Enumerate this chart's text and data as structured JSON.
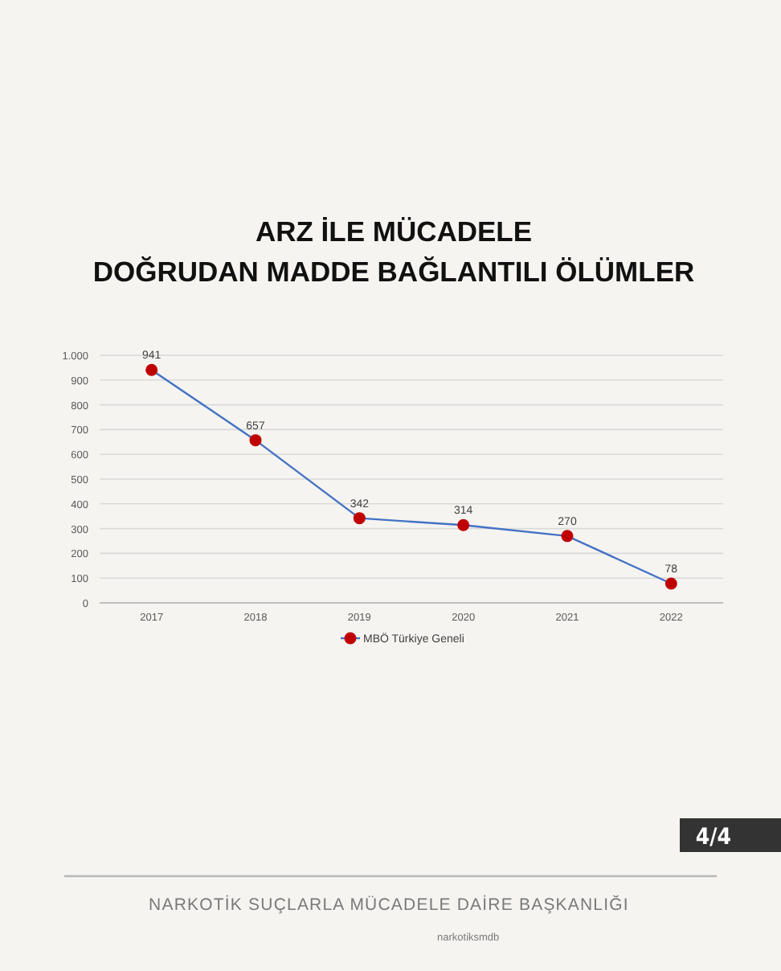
{
  "chart_data": {
    "type": "line",
    "title": "ARZ İLE MÜCADELE\nDOĞRUDAN MADDE BAĞLANTILI ÖLÜMLER",
    "categories": [
      "2017",
      "2018",
      "2019",
      "2020",
      "2021",
      "2022"
    ],
    "series": [
      {
        "name": "MBÖ Türkiye Geneli",
        "color": "#4472c4",
        "colors": [
          "#c00000",
          "#c00000",
          "#c00000",
          "#c00000",
          "#c00000",
          "#c00000"
        ],
        "values": [
          941,
          657,
          342,
          314,
          270,
          78
        ]
      }
    ],
    "ylim": [
      0,
      1000
    ],
    "yticks": [
      0,
      100,
      200,
      300,
      400,
      500,
      600,
      700,
      800,
      900,
      {
        "value": 1000,
        "label": "1.000"
      }
    ],
    "grid": "y",
    "legend": "bottom",
    "marker": "circle",
    "line_style": "solid",
    "data_labels": true,
    "annotations": [
      "4/4",
      "NARKOTİK SUÇLARLA MÜCADELE DAİRE BAŞKANLIĞI",
      "narkotiksmdb"
    ]
  }
}
